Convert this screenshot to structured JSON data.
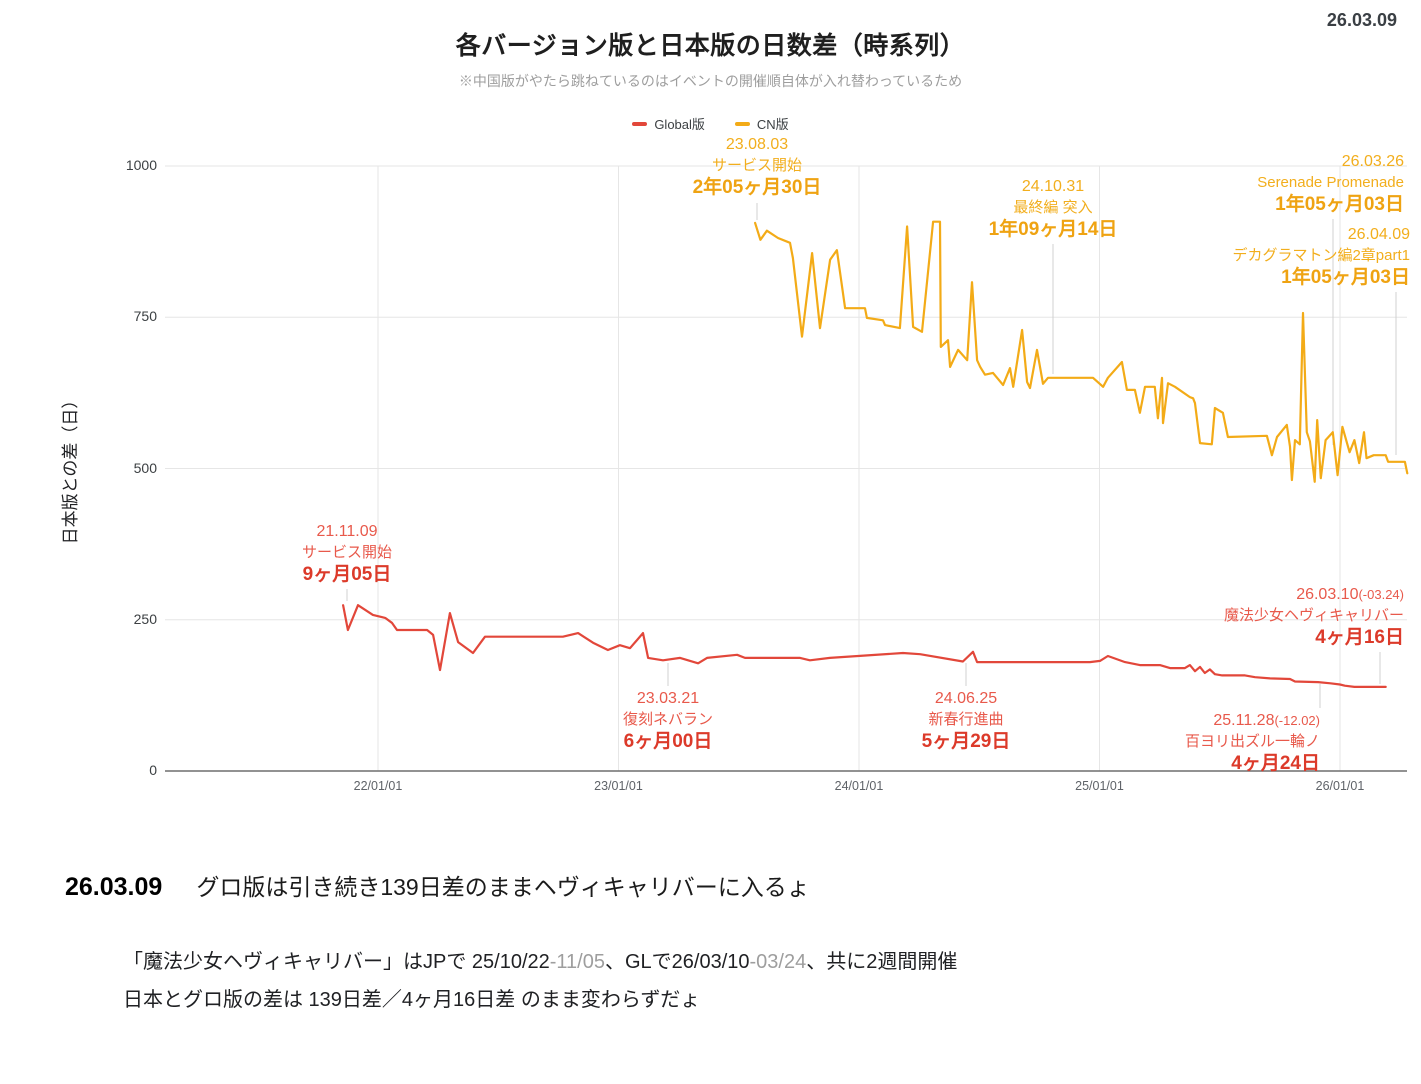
{
  "header": {
    "date": "26.03.09"
  },
  "chart_data": {
    "type": "line",
    "title": "各バージョン版と日本版の日数差（時系列）",
    "subtitle": "※中国版がやたら跳ねているのはイベントの開催順自体が入れ替わっているため",
    "ylabel": "日本版との差（日）",
    "ylim": [
      0,
      1000
    ],
    "grid": true,
    "legend_position": "top-center",
    "y_ticks": [
      {
        "v": 0,
        "label": "0"
      },
      {
        "v": 250,
        "label": "250"
      },
      {
        "v": 500,
        "label": "500"
      },
      {
        "v": 750,
        "label": "750"
      },
      {
        "v": 1000,
        "label": "1000"
      }
    ],
    "x_ticks": [
      {
        "v": 2022,
        "label": "22/01/01"
      },
      {
        "v": 2023,
        "label": "23/01/01"
      },
      {
        "v": 2024,
        "label": "24/01/01"
      },
      {
        "v": 2025,
        "label": "25/01/01"
      },
      {
        "v": 2026,
        "label": "26/01/01"
      }
    ],
    "series": [
      {
        "name": "Global版",
        "color": "#e2473a",
        "points": [
          [
            2021.855,
            274
          ],
          [
            2021.875,
            233
          ],
          [
            2021.917,
            274
          ],
          [
            2021.979,
            258
          ],
          [
            2022.03,
            253
          ],
          [
            2022.058,
            245
          ],
          [
            2022.079,
            233
          ],
          [
            2022.204,
            233
          ],
          [
            2022.229,
            225
          ],
          [
            2022.258,
            167
          ],
          [
            2022.299,
            261
          ],
          [
            2022.333,
            213
          ],
          [
            2022.395,
            195
          ],
          [
            2022.445,
            222
          ],
          [
            2022.769,
            222
          ],
          [
            2022.832,
            228
          ],
          [
            2022.894,
            212
          ],
          [
            2022.956,
            200
          ],
          [
            2023.006,
            208
          ],
          [
            2023.048,
            203
          ],
          [
            2023.102,
            228
          ],
          [
            2023.123,
            187
          ],
          [
            2023.185,
            183
          ],
          [
            2023.256,
            187
          ],
          [
            2023.331,
            178
          ],
          [
            2023.368,
            187
          ],
          [
            2023.493,
            192
          ],
          [
            2023.526,
            187
          ],
          [
            2023.755,
            187
          ],
          [
            2023.796,
            183
          ],
          [
            2023.879,
            187
          ],
          [
            2024.183,
            195
          ],
          [
            2024.254,
            193
          ],
          [
            2024.432,
            181
          ],
          [
            2024.474,
            197
          ],
          [
            2024.491,
            180
          ],
          [
            2024.753,
            180
          ],
          [
            2024.96,
            180
          ],
          [
            2025.002,
            182
          ],
          [
            2025.035,
            190
          ],
          [
            2025.064,
            186
          ],
          [
            2025.106,
            180
          ],
          [
            2025.168,
            175
          ],
          [
            2025.251,
            175
          ],
          [
            2025.293,
            170
          ],
          [
            2025.355,
            170
          ],
          [
            2025.376,
            175
          ],
          [
            2025.397,
            165
          ],
          [
            2025.418,
            172
          ],
          [
            2025.438,
            162
          ],
          [
            2025.459,
            168
          ],
          [
            2025.48,
            160
          ],
          [
            2025.51,
            158
          ],
          [
            2025.605,
            158
          ],
          [
            2025.647,
            155
          ],
          [
            2025.709,
            153
          ],
          [
            2025.792,
            152
          ],
          [
            2025.813,
            148
          ],
          [
            2025.909,
            147
          ],
          [
            2025.96,
            145
          ],
          [
            2026.0,
            143
          ],
          [
            2026.02,
            141
          ],
          [
            2026.06,
            139
          ],
          [
            2026.19,
            139
          ]
        ]
      },
      {
        "name": "CN版",
        "color": "#f3ab17",
        "points": [
          [
            2023.568,
            906
          ],
          [
            2023.59,
            878
          ],
          [
            2023.617,
            893
          ],
          [
            2023.663,
            881
          ],
          [
            2023.713,
            873
          ],
          [
            2023.725,
            848
          ],
          [
            2023.763,
            718
          ],
          [
            2023.805,
            856
          ],
          [
            2023.838,
            732
          ],
          [
            2023.88,
            845
          ],
          [
            2023.908,
            861
          ],
          [
            2023.942,
            765
          ],
          [
            2024.025,
            765
          ],
          [
            2024.033,
            749
          ],
          [
            2024.1,
            745
          ],
          [
            2024.108,
            737
          ],
          [
            2024.17,
            732
          ],
          [
            2024.2,
            900
          ],
          [
            2024.225,
            734
          ],
          [
            2024.262,
            726
          ],
          [
            2024.308,
            908
          ],
          [
            2024.337,
            908
          ],
          [
            2024.34,
            701
          ],
          [
            2024.37,
            712
          ],
          [
            2024.379,
            668
          ],
          [
            2024.412,
            696
          ],
          [
            2024.45,
            679
          ],
          [
            2024.47,
            808
          ],
          [
            2024.491,
            679
          ],
          [
            2024.504,
            668
          ],
          [
            2024.524,
            655
          ],
          [
            2024.557,
            658
          ],
          [
            2024.599,
            638
          ],
          [
            2024.628,
            666
          ],
          [
            2024.641,
            635
          ],
          [
            2024.678,
            729
          ],
          [
            2024.699,
            643
          ],
          [
            2024.711,
            633
          ],
          [
            2024.74,
            696
          ],
          [
            2024.765,
            640
          ],
          [
            2024.786,
            650
          ],
          [
            2024.973,
            650
          ],
          [
            2025.015,
            635
          ],
          [
            2025.035,
            650
          ],
          [
            2025.093,
            676
          ],
          [
            2025.114,
            630
          ],
          [
            2025.147,
            630
          ],
          [
            2025.168,
            592
          ],
          [
            2025.189,
            635
          ],
          [
            2025.23,
            635
          ],
          [
            2025.243,
            583
          ],
          [
            2025.26,
            650
          ],
          [
            2025.264,
            575
          ],
          [
            2025.285,
            641
          ],
          [
            2025.314,
            635
          ],
          [
            2025.376,
            618
          ],
          [
            2025.389,
            616
          ],
          [
            2025.397,
            608
          ],
          [
            2025.418,
            542
          ],
          [
            2025.467,
            540
          ],
          [
            2025.48,
            600
          ],
          [
            2025.513,
            592
          ],
          [
            2025.534,
            552
          ],
          [
            2025.696,
            554
          ],
          [
            2025.717,
            522
          ],
          [
            2025.738,
            552
          ],
          [
            2025.779,
            572
          ],
          [
            2025.792,
            536
          ],
          [
            2025.8,
            481
          ],
          [
            2025.813,
            547
          ],
          [
            2025.833,
            540
          ],
          [
            2025.846,
            757
          ],
          [
            2025.862,
            560
          ],
          [
            2025.875,
            545
          ],
          [
            2025.895,
            478
          ],
          [
            2025.905,
            580
          ],
          [
            2025.92,
            484
          ],
          [
            2025.94,
            547
          ],
          [
            2025.97,
            560
          ],
          [
            2025.99,
            489
          ],
          [
            2026.01,
            569
          ],
          [
            2026.04,
            527
          ],
          [
            2026.06,
            547
          ],
          [
            2026.08,
            509
          ],
          [
            2026.1,
            560
          ],
          [
            2026.11,
            517
          ],
          [
            2026.14,
            522
          ],
          [
            2026.19,
            522
          ],
          [
            2026.2,
            511
          ],
          [
            2026.27,
            511
          ],
          [
            2026.28,
            492
          ]
        ]
      }
    ],
    "annotations": [
      {
        "series": "CN版",
        "date": "23.08.03",
        "suffix": "",
        "label": "サービス開始",
        "value": "2年05ヶ月30日"
      },
      {
        "series": "CN版",
        "date": "24.10.31",
        "suffix": "",
        "label": "最終編 突入",
        "value": "1年09ヶ月14日"
      },
      {
        "series": "CN版",
        "date": "26.03.26",
        "suffix": "",
        "label": "Serenade Promenade",
        "value": "1年05ヶ月03日"
      },
      {
        "series": "CN版",
        "date": "26.04.09",
        "suffix": "",
        "label": "デカグラマトン編2章part1",
        "value": "1年05ヶ月03日"
      },
      {
        "series": "Global版",
        "date": "21.11.09",
        "suffix": "",
        "label": "サービス開始",
        "value": "9ヶ月05日"
      },
      {
        "series": "Global版",
        "date": "26.03.10",
        "suffix": "(-03.24)",
        "label": "魔法少女ヘヴィキャリバー",
        "value": "4ヶ月16日"
      },
      {
        "series": "Global版",
        "date": "23.03.21",
        "suffix": "",
        "label": "復刻ネバラン",
        "value": "6ヶ月00日"
      },
      {
        "series": "Global版",
        "date": "24.06.25",
        "suffix": "",
        "label": "新春行進曲",
        "value": "5ヶ月29日"
      },
      {
        "series": "Global版",
        "date": "25.11.28",
        "suffix": "(-12.02)",
        "label": "百ヨリ出ズル一輪ノ",
        "value": "4ヶ月24日"
      }
    ]
  },
  "footer": {
    "heading_date": "26.03.09",
    "heading_text": "グロ版は引き続き139日差のままヘヴィキャリバーに入るょ",
    "line1_parts": {
      "p1": "「魔法少女ヘヴィキャリバー」はJPで 25/10/22",
      "p2": "-11/05",
      "p3": "、GLで26/03/10",
      "p4": "-03/24",
      "p5": "、共に2週間開催"
    },
    "line2": "日本とグロ版の差は 139日差／4ヶ月16日差 のまま変わらずだょ"
  }
}
